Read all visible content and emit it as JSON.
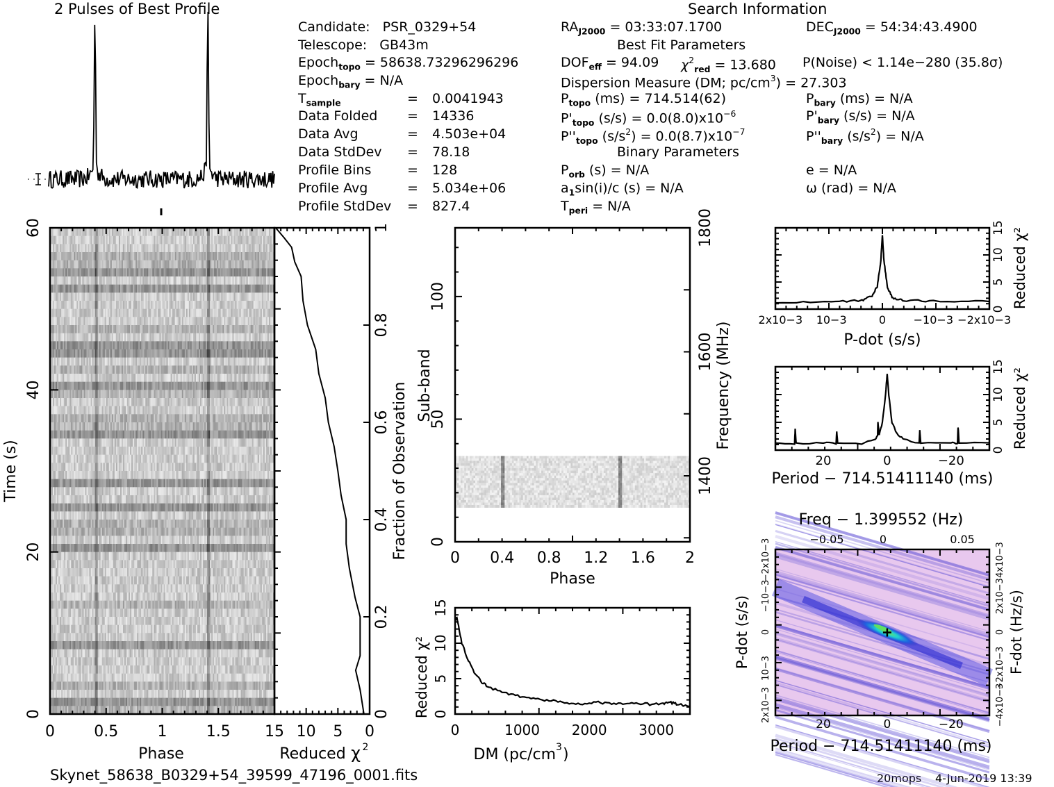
{
  "filename": "Skynet_58638_B0329+54_39599_47196_0001.fits",
  "footer": {
    "user": "20mops",
    "date": "4-Jun-2019 13:39"
  },
  "header": {
    "profile_title": "2 Pulses of Best Profile",
    "search_title": "Search Information",
    "best_fit_title": "Best Fit Parameters",
    "binary_title": "Binary Parameters"
  },
  "candidate_info": [
    {
      "label": "Candidate:",
      "value": "PSR_0329+54"
    },
    {
      "label": "Telescope:",
      "value": "GB43m"
    },
    {
      "label": "Epoch",
      "sub": "topo",
      "value": "= 58638.73296296296"
    },
    {
      "label": "Epoch",
      "sub": "bary",
      "value": "= N/A"
    },
    {
      "label": "T",
      "sub": "sample",
      "value": "0.0041943"
    },
    {
      "label": "Data Folded",
      "value": "14336"
    },
    {
      "label": "Data Avg",
      "value": "4.503e+04"
    },
    {
      "label": "Data StdDev",
      "value": "78.18"
    },
    {
      "label": "Profile Bins",
      "value": "128"
    },
    {
      "label": "Profile Avg",
      "value": "5.034e+06"
    },
    {
      "label": "Profile StdDev",
      "value": "827.4"
    }
  ],
  "search_info": {
    "ra": {
      "label": "RA",
      "sub": "J2000",
      "value": "= 03:33:07.1700"
    },
    "dec": {
      "label": "DEC",
      "sub": "J2000",
      "value": "= 54:34:43.4900"
    },
    "dof": {
      "label": "DOF",
      "sub": "eff",
      "value": "= 94.09"
    },
    "chi2": {
      "label": "χ",
      "sup": "2",
      "sub": "red",
      "value": "= 13.680"
    },
    "pnoise": "P(Noise) < 1.14e−280  (35.8σ)",
    "dm": {
      "label": "Dispersion Measure (DM; pc/cm",
      "sup": "3",
      "value": ") = 27.303"
    },
    "p_topo": {
      "label": "P",
      "sub": "topo",
      "value": "(ms) =  714.514(62)"
    },
    "pd_topo": {
      "label": "P'",
      "sub": "topo",
      "value": "(s/s) = 0.0(8.0)x10",
      "sup": "−6"
    },
    "pdd_topo": {
      "label": "P''",
      "sub": "topo",
      "value": "(s/s",
      "sup": "2",
      "value2": ") = 0.0(8.7)x10",
      "sup2": "−7"
    },
    "p_bary": {
      "label": "P",
      "sub": "bary",
      "value": "(ms) = N/A"
    },
    "pd_bary": {
      "label": "P'",
      "sub": "bary",
      "value": "(s/s) = N/A"
    },
    "pdd_bary": {
      "label": "P''",
      "sub": "bary",
      "value": "(s/s",
      "sup": "2",
      "value2": ") = N/A"
    },
    "p_orb": {
      "label": "P",
      "sub": "orb",
      "value": "(s) = N/A"
    },
    "a1sini": {
      "label": "a",
      "sub": "1",
      "value": "sin(i)/c (s) = N/A"
    },
    "t_peri": {
      "label": "T",
      "sub": "peri",
      "value": "= N/A"
    },
    "e": "e = N/A",
    "omega": "ω (rad) = N/A"
  },
  "chart_data": [
    {
      "type": "line",
      "title": "2 Pulses of Best Profile",
      "xlabel": "",
      "ylabel": "",
      "x_range": [
        0,
        2
      ],
      "peaks_phase": [
        0.41,
        1.41
      ],
      "peak_relative_height": 1.0,
      "baseline_relative": 0.0
    },
    {
      "type": "heatmap",
      "name": "time-phase",
      "xlabel": "Phase",
      "ylabel": "Time (s)",
      "xlim": [
        0,
        2
      ],
      "ylim": [
        0,
        60
      ],
      "xticks": [
        "0",
        "0.5",
        "1",
        "1.5"
      ],
      "yticks": [
        "0",
        "20",
        "40",
        "60"
      ],
      "pulse_phases": [
        0.41,
        1.41
      ],
      "colormap": "grayscale"
    },
    {
      "type": "line",
      "name": "time-chi2",
      "xlabel": "Reduced χ2",
      "ylabel": "Fraction of Observation",
      "xlim": [
        15,
        0
      ],
      "ylim": [
        0,
        1
      ],
      "xticks": [
        "15",
        "10",
        "5",
        "0"
      ],
      "yticks": [
        "0",
        "0.2",
        "0.4",
        "0.6",
        "0.8",
        "1"
      ],
      "x": [
        0.9,
        1.5,
        2.2,
        1.5,
        1.5,
        2.3,
        3.2,
        3.7,
        3.7,
        4.5,
        5.0,
        5.6,
        6.5,
        7.0,
        8.0,
        8.5,
        9.8,
        10.5,
        10.8,
        11.8,
        12.3,
        13.5,
        14.8
      ],
      "y": [
        0.0,
        0.05,
        0.09,
        0.12,
        0.2,
        0.24,
        0.3,
        0.35,
        0.4,
        0.45,
        0.5,
        0.55,
        0.6,
        0.65,
        0.7,
        0.75,
        0.8,
        0.85,
        0.9,
        0.93,
        0.96,
        0.98,
        1.0
      ]
    },
    {
      "type": "heatmap",
      "name": "subband-phase",
      "xlabel": "Phase",
      "ylabel": "Sub-band",
      "ylabel_right": "Frequency (MHz)",
      "xlim": [
        0,
        2
      ],
      "ylim": [
        0,
        128
      ],
      "xticks": [
        "0",
        "0.4",
        "0.8",
        "1.2",
        "1.6",
        "2"
      ],
      "yticks": [
        "0",
        "50",
        "100"
      ],
      "yticks_right": [
        "1400",
        "1600",
        "1800"
      ],
      "data_band_subbands": [
        14,
        35
      ],
      "pulse_phases": [
        0.41,
        1.41
      ],
      "colormap": "grayscale"
    },
    {
      "type": "line",
      "name": "dm-chi2",
      "xlabel": "DM (pc/cm3)",
      "ylabel": "Reduced χ2",
      "xlim": [
        0,
        3500
      ],
      "ylim": [
        0,
        15
      ],
      "xticks": [
        "0",
        "1000",
        "2000",
        "3000"
      ],
      "yticks": [
        "0",
        "5",
        "10",
        "15"
      ],
      "x": [
        0,
        27,
        100,
        200,
        300,
        400,
        500,
        700,
        900,
        1100,
        1300,
        1500,
        1700,
        1900,
        2100,
        2300,
        2500,
        2700,
        2900,
        3100,
        3200,
        3300,
        3500
      ],
      "y": [
        13.2,
        13.7,
        10.0,
        7.5,
        5.6,
        4.5,
        3.8,
        3.1,
        2.6,
        2.3,
        2.0,
        1.8,
        1.6,
        1.5,
        1.7,
        1.5,
        1.4,
        1.5,
        1.4,
        1.5,
        1.7,
        1.4,
        1.1
      ]
    },
    {
      "type": "line",
      "name": "pdot-chi2",
      "xlabel": "P-dot (s/s)",
      "ylabel": "Reduced χ2",
      "xlim": [
        0.0021,
        -0.0021
      ],
      "ylim": [
        0,
        15
      ],
      "xticks": [
        "2x10−3",
        "10−3",
        "0",
        "−10−3",
        "−2x10−3"
      ],
      "yticks": [
        "0",
        "5",
        "10",
        "15"
      ],
      "x": [
        0.0021,
        0.001,
        0.0004,
        0.0002,
        0.0001,
        3e-05,
        0.0,
        -3e-05,
        -0.0001,
        -0.0002,
        -0.0004,
        -0.001,
        -0.0021
      ],
      "y": [
        1.3,
        1.3,
        1.6,
        2.5,
        4.2,
        9.0,
        13.7,
        9.0,
        4.0,
        2.0,
        1.6,
        1.5,
        1.4
      ]
    },
    {
      "type": "line",
      "name": "period-chi2",
      "xlabel": "Period − 714.51411140 (ms)",
      "ylabel": "Reduced χ2",
      "xlim": [
        35,
        -32
      ],
      "ylim": [
        0,
        15
      ],
      "xticks": [
        "20",
        "0",
        "−20"
      ],
      "yticks": [
        "0",
        "5",
        "10",
        "15"
      ],
      "x": [
        35,
        29,
        28.8,
        28.5,
        20,
        16,
        15.8,
        15.5,
        8,
        4,
        3,
        2.9,
        2.5,
        1.5,
        0.5,
        0,
        -0.5,
        -1.5,
        -3,
        -5,
        -10,
        -10.2,
        -10.5,
        -20,
        -22,
        -22.2,
        -22.5,
        -32
      ],
      "y": [
        1.2,
        1.2,
        3.8,
        1.2,
        1.3,
        1.2,
        3.3,
        1.3,
        1.2,
        1.8,
        2.6,
        5.0,
        2.8,
        5.0,
        10.0,
        13.7,
        10.0,
        5.0,
        3.0,
        2.0,
        1.2,
        3.5,
        1.3,
        1.4,
        1.2,
        4.2,
        1.4,
        1.3
      ]
    },
    {
      "type": "heatmap",
      "name": "period-pdot",
      "title": "Freq − 1.399552 (Hz)",
      "xlabel": "Period − 714.51411140 (ms)",
      "ylabel": "P-dot (s/s)",
      "ylabel_right": "F-dot (Hz/s)",
      "xlim": [
        35,
        -32
      ],
      "xticks": [
        "20",
        "0",
        "−20"
      ],
      "xticks_top": [
        "−0.05",
        "0",
        "0.05"
      ],
      "yticks": [
        "2x10−3",
        "10−3",
        "0",
        "−10−3",
        "−2x10−3"
      ],
      "yticks_right": [
        "−4x10−3",
        "−2x10−3",
        "0",
        "2x10−3",
        "4x10−3"
      ],
      "best_fit_point": [
        0,
        0
      ],
      "colors": {
        "background": "#e8c8ee",
        "band": "#4040e0",
        "peak": "#20d0d0",
        "core": "#60e060"
      }
    }
  ]
}
